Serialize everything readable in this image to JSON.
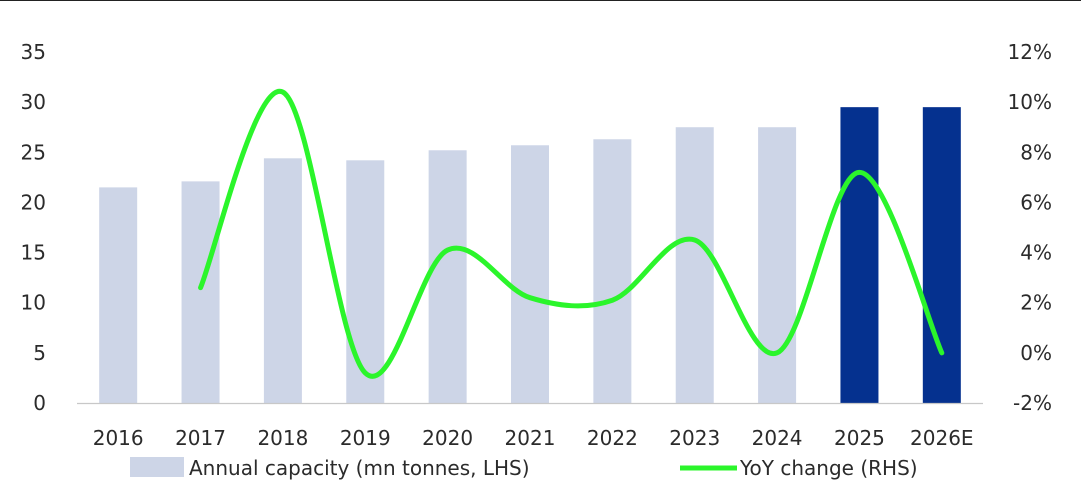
{
  "chart_data": {
    "type": "bar",
    "title": "",
    "categories": [
      "2016",
      "2017",
      "2018",
      "2019",
      "2020",
      "2021",
      "2022",
      "2023",
      "2024",
      "2025",
      "2026E"
    ],
    "series": [
      {
        "name": "Annual capacity (mn tonnes, LHS)",
        "chart": "bar",
        "axis": "left",
        "values": [
          21.5,
          22.1,
          24.4,
          24.2,
          25.2,
          25.7,
          26.3,
          27.5,
          27.5,
          29.5,
          29.5
        ],
        "colors": [
          "#cdd5e7",
          "#cdd5e7",
          "#cdd5e7",
          "#cdd5e7",
          "#cdd5e7",
          "#cdd5e7",
          "#cdd5e7",
          "#cdd5e7",
          "#cdd5e7",
          "#05318f",
          "#05318f"
        ]
      },
      {
        "name": "YoY change (RHS)",
        "chart": "line",
        "axis": "right",
        "color": "#2bf52b",
        "smooth": true,
        "values": [
          null,
          2.6,
          10.4,
          -0.8,
          4.1,
          2.2,
          2.1,
          4.5,
          0.0,
          7.2,
          0.0
        ]
      }
    ],
    "y_left": {
      "ylim": [
        0,
        35
      ],
      "ticks": [
        "0",
        "5",
        "10",
        "15",
        "20",
        "25",
        "30",
        "35"
      ],
      "tick_values": [
        0,
        5,
        10,
        15,
        20,
        25,
        30,
        35
      ]
    },
    "y_right": {
      "ylim": [
        -2,
        12
      ],
      "ticks": [
        "-2%",
        "0%",
        "2%",
        "4%",
        "6%",
        "8%",
        "10%",
        "12%"
      ],
      "tick_values": [
        -2,
        0,
        2,
        4,
        6,
        8,
        10,
        12
      ]
    },
    "grid": false,
    "legend_position": "bottom",
    "legend": [
      {
        "label": "Annual capacity (mn tonnes, LHS)",
        "color": "#cdd5e7",
        "kind": "box"
      },
      {
        "label": "YoY change (RHS)",
        "color": "#2bf52b",
        "kind": "line"
      }
    ]
  }
}
